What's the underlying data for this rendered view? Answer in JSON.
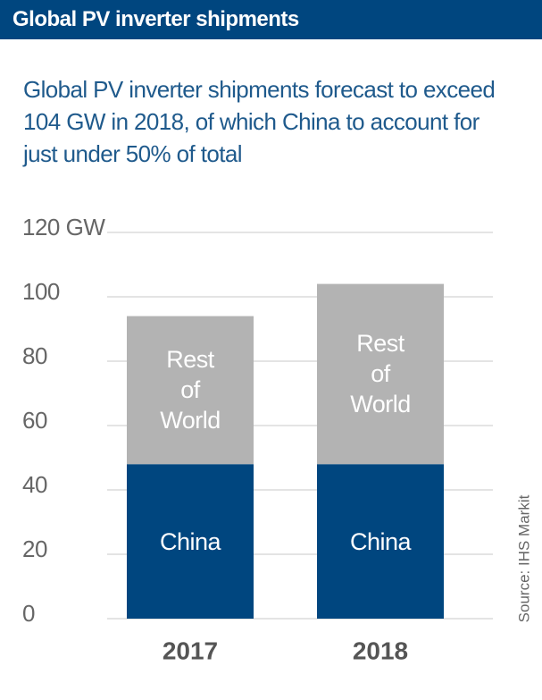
{
  "title": "Global PV inverter shipments",
  "chart_data": {
    "type": "stacked_bar",
    "subtitle": "Global PV inverter shipments forecast to exceed 104 GW in 2018, of which China to account for just under 50% of total",
    "categories": [
      "2017",
      "2018"
    ],
    "series": [
      {
        "name": "China",
        "color": "#00467f",
        "values": [
          48,
          48
        ]
      },
      {
        "name": "Rest of World",
        "color": "#b3b3b3",
        "values": [
          46,
          56
        ]
      }
    ],
    "ylim": [
      0,
      120
    ],
    "yticks": [
      0,
      20,
      40,
      60,
      80,
      100,
      {
        "value": 120,
        "label": "120 GW"
      }
    ],
    "grid": true,
    "source": "Source: IHS Markit"
  }
}
